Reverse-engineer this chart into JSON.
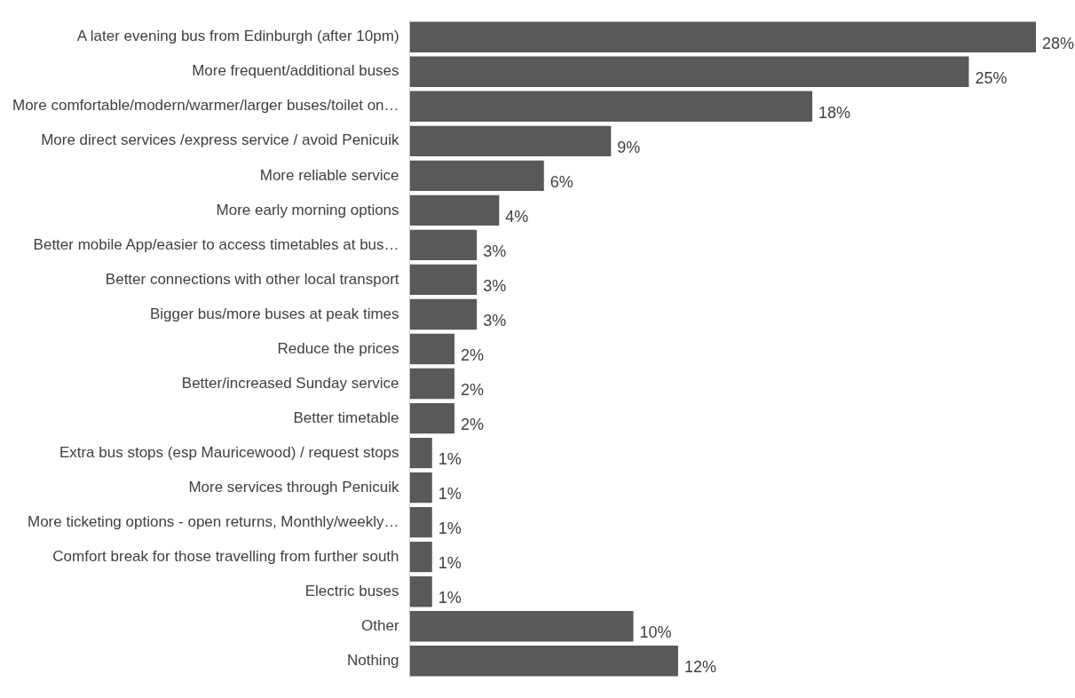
{
  "chart_data": {
    "type": "bar",
    "orientation": "horizontal",
    "color": "#595959",
    "legend": false,
    "categories": [
      "A later evening bus from Edinburgh (after 10pm)",
      "More frequent/additional buses",
      "More comfortable/modern/warmer/larger buses/toilet on…",
      "More direct services /express service / avoid Penicuik",
      "More reliable service",
      "More early morning options",
      "Better mobile App/easier to access timetables at bus…",
      "Better connections with other local transport",
      "Bigger bus/more buses at peak times",
      "Reduce the prices",
      "Better/increased Sunday service",
      "Better timetable",
      "Extra bus stops (esp Mauricewood) / request stops",
      "More services through Penicuik",
      "More ticketing options - open returns, Monthly/weekly…",
      "Comfort break for those travelling from further south",
      "Electric buses",
      "Other",
      "Nothing"
    ],
    "values": [
      28,
      25,
      18,
      9,
      6,
      4,
      3,
      3,
      3,
      2,
      2,
      2,
      1,
      1,
      1,
      1,
      1,
      10,
      12
    ],
    "value_labels": [
      "28%",
      "25%",
      "18%",
      "9%",
      "6%",
      "4%",
      "3%",
      "3%",
      "3%",
      "2%",
      "2%",
      "2%",
      "1%",
      "1%",
      "1%",
      "1%",
      "1%",
      "10%",
      "12%"
    ]
  }
}
